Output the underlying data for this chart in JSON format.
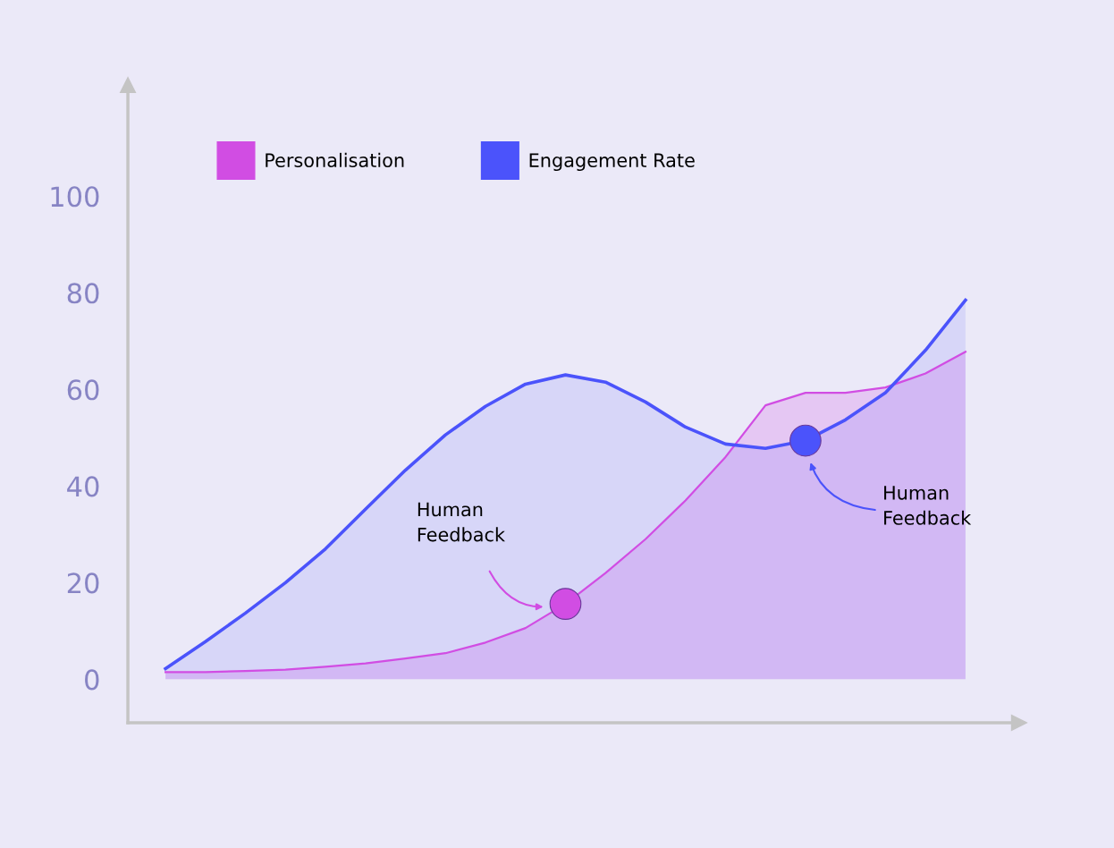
{
  "chart_data": {
    "type": "area",
    "categories": [
      null,
      null,
      null,
      null,
      null,
      null,
      null,
      null,
      null,
      null,
      null,
      null,
      null,
      null,
      null,
      null,
      null,
      null,
      null,
      null,
      null
    ],
    "series": [
      {
        "name": "Personalisation",
        "color": "#d14de3",
        "values": [
          1.5,
          1.5,
          1.7,
          2,
          2.6,
          3.3,
          4.3,
          5.4,
          7.6,
          10.6,
          15.6,
          22,
          29,
          37,
          46,
          56.7,
          59.3,
          59.3,
          60.4,
          63.3,
          67.8
        ]
      },
      {
        "name": "Engagement Rate",
        "color": "#4b53fb",
        "values": [
          2.2,
          7.8,
          13.7,
          20,
          27,
          35.2,
          43.3,
          50.6,
          56.5,
          61.1,
          63,
          61.5,
          57.4,
          52.2,
          48.7,
          47.8,
          49.4,
          53.7,
          59.3,
          68.1,
          78.5
        ]
      }
    ],
    "ylim": [
      -9,
      123
    ],
    "yticks": [
      0,
      20,
      40,
      60,
      80,
      100
    ],
    "tick_labels": "y",
    "legend": "top left",
    "annotations": [
      "Human\nFeedback",
      "Human\nFeedback"
    ]
  }
}
